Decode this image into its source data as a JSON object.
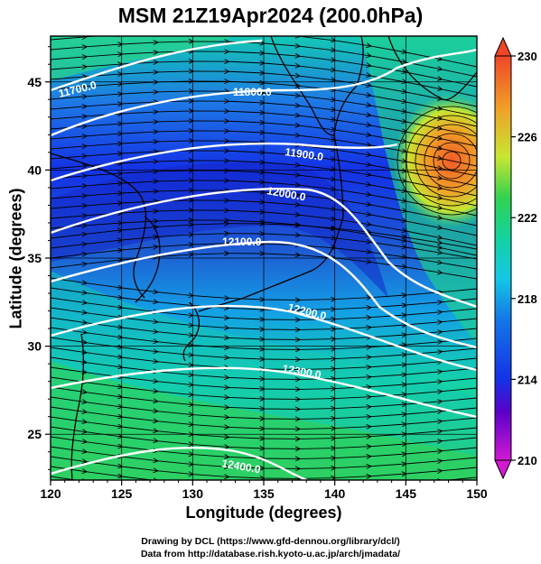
{
  "header": {
    "title": "MSM 21Z19Apr2024 (200.0hPa)"
  },
  "axes": {
    "xlabel": "Longitude (degrees)",
    "ylabel": "Latitude  (degrees)",
    "xticks": [
      "120",
      "125",
      "130",
      "135",
      "140",
      "145",
      "150"
    ],
    "yticks": [
      "25",
      "30",
      "35",
      "40",
      "45"
    ]
  },
  "colorbar": {
    "ticks": [
      "210",
      "214",
      "218",
      "222",
      "226",
      "230"
    ],
    "colors": [
      "#d21ad2",
      "#5a00c8",
      "#1432e6",
      "#14b4e6",
      "#14d2a0",
      "#32d250",
      "#c8e632",
      "#f0a028",
      "#f04628"
    ]
  },
  "contours": {
    "labels": [
      "11700.0",
      "11800.0",
      "11900.0",
      "12000.0",
      "12100.0",
      "12200.0",
      "12300.0",
      "12400.0"
    ]
  },
  "footer": {
    "credit_line1": "Drawing by DCL (https://www.gfd-dennou.org/library/dcl/)",
    "credit_line2": "Data from http://database.rish.kyoto-u.ac.jp/arch/jmadata/"
  },
  "chart_data": {
    "type": "heatmap",
    "title": "MSM 21Z19Apr2024 (200.0hPa)",
    "xlabel": "Longitude (degrees)",
    "ylabel": "Latitude  (degrees)",
    "xlim": [
      120,
      150
    ],
    "ylim": [
      22.4,
      47.6
    ],
    "clim": [
      210,
      230
    ],
    "colorbar_ticks": [
      210,
      214,
      218,
      222,
      226,
      230
    ],
    "grid": true,
    "contour_levels": [
      11700,
      11800,
      11900,
      12000,
      12100,
      12200,
      12300,
      12400
    ],
    "colormap": [
      "#d21ad2",
      "#5a00c8",
      "#1432e6",
      "#14b4e6",
      "#14d2a0",
      "#32d250",
      "#c8e632",
      "#f0a028",
      "#f04628"
    ]
  }
}
